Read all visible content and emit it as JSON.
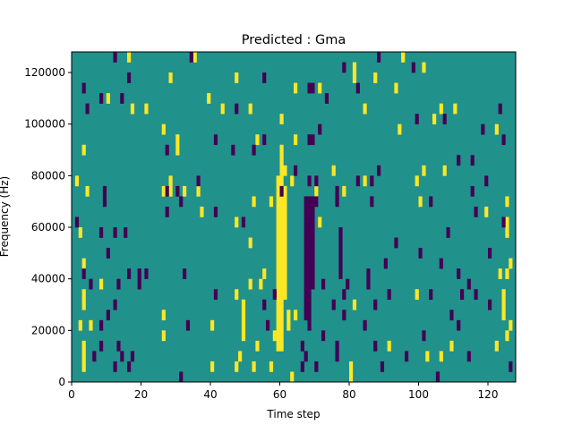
{
  "chart_data": {
    "type": "heatmap",
    "title": "Predicted : Gma",
    "xlabel": "Time step",
    "ylabel": "Frequency (Hz)",
    "xlim": [
      0,
      128
    ],
    "ylim": [
      0,
      128000
    ],
    "n_cols": 128,
    "n_rows": 32,
    "row_bin_hz": 4000,
    "x_ticks": [
      0,
      20,
      40,
      60,
      80,
      100,
      120
    ],
    "y_ticks": [
      0,
      20000,
      40000,
      60000,
      80000,
      100000,
      120000
    ],
    "colors": {
      "background": "#21918c",
      "high": "#fde725",
      "low": "#440154"
    },
    "yellow_runs": [
      [
        59,
        3,
        19
      ],
      [
        60,
        3,
        22
      ],
      [
        61,
        8,
        17
      ],
      [
        62,
        5,
        6
      ]
    ],
    "purple_runs": [
      [
        67,
        6,
        17
      ],
      [
        68,
        5,
        17
      ],
      [
        69,
        9,
        17
      ]
    ],
    "yellow": [
      [
        16,
        31
      ],
      [
        35,
        31
      ],
      [
        95,
        31
      ],
      [
        81,
        30
      ],
      [
        101,
        30
      ],
      [
        28,
        29
      ],
      [
        47,
        29
      ],
      [
        81,
        29
      ],
      [
        87,
        29
      ],
      [
        64,
        28
      ],
      [
        71,
        28
      ],
      [
        93,
        28
      ],
      [
        10,
        27
      ],
      [
        39,
        27
      ],
      [
        17,
        26
      ],
      [
        21,
        26
      ],
      [
        43,
        26
      ],
      [
        51,
        26
      ],
      [
        84,
        26
      ],
      [
        106,
        26
      ],
      [
        110,
        26
      ],
      [
        60,
        25
      ],
      [
        104,
        25
      ],
      [
        26,
        24
      ],
      [
        94,
        24
      ],
      [
        122,
        24
      ],
      [
        30,
        23
      ],
      [
        53,
        23
      ],
      [
        64,
        23
      ],
      [
        3,
        22
      ],
      [
        30,
        22
      ],
      [
        61,
        20
      ],
      [
        75,
        20
      ],
      [
        101,
        20
      ],
      [
        107,
        20
      ],
      [
        1,
        19
      ],
      [
        28,
        19
      ],
      [
        63,
        19
      ],
      [
        84,
        19
      ],
      [
        99,
        19
      ],
      [
        4,
        18
      ],
      [
        26,
        18
      ],
      [
        28,
        18
      ],
      [
        32,
        18
      ],
      [
        36,
        18
      ],
      [
        61,
        18
      ],
      [
        70,
        18
      ],
      [
        78,
        18
      ],
      [
        52,
        17
      ],
      [
        57,
        17
      ],
      [
        100,
        17
      ],
      [
        125,
        17
      ],
      [
        37,
        16
      ],
      [
        119,
        16
      ],
      [
        47,
        15
      ],
      [
        71,
        15
      ],
      [
        125,
        15
      ],
      [
        2,
        14
      ],
      [
        125,
        14
      ],
      [
        51,
        13
      ],
      [
        3,
        11
      ],
      [
        126,
        11
      ],
      [
        55,
        10
      ],
      [
        123,
        10
      ],
      [
        125,
        10
      ],
      [
        8,
        9
      ],
      [
        51,
        9
      ],
      [
        54,
        9
      ],
      [
        3,
        8
      ],
      [
        47,
        8
      ],
      [
        99,
        8
      ],
      [
        124,
        8
      ],
      [
        3,
        7
      ],
      [
        49,
        7
      ],
      [
        81,
        7
      ],
      [
        124,
        7
      ],
      [
        26,
        6
      ],
      [
        49,
        6
      ],
      [
        64,
        6
      ],
      [
        124,
        6
      ],
      [
        2,
        5
      ],
      [
        5,
        5
      ],
      [
        40,
        5
      ],
      [
        49,
        5
      ],
      [
        126,
        5
      ],
      [
        26,
        4
      ],
      [
        49,
        4
      ],
      [
        58,
        4
      ],
      [
        125,
        4
      ],
      [
        3,
        3
      ],
      [
        53,
        3
      ],
      [
        91,
        3
      ],
      [
        109,
        3
      ],
      [
        122,
        3
      ],
      [
        3,
        2
      ],
      [
        48,
        2
      ],
      [
        102,
        2
      ],
      [
        106,
        2
      ],
      [
        3,
        1
      ],
      [
        40,
        1
      ],
      [
        47,
        1
      ],
      [
        52,
        1
      ],
      [
        57,
        1
      ],
      [
        80,
        1
      ],
      [
        80,
        0
      ],
      [
        63,
        0
      ]
    ],
    "purple": [
      [
        12,
        31
      ],
      [
        34,
        31
      ],
      [
        88,
        31
      ],
      [
        78,
        30
      ],
      [
        98,
        30
      ],
      [
        16,
        29
      ],
      [
        55,
        29
      ],
      [
        3,
        28
      ],
      [
        68,
        28
      ],
      [
        69,
        28
      ],
      [
        82,
        28
      ],
      [
        8,
        27
      ],
      [
        14,
        27
      ],
      [
        73,
        27
      ],
      [
        4,
        26
      ],
      [
        47,
        26
      ],
      [
        123,
        26
      ],
      [
        99,
        25
      ],
      [
        107,
        25
      ],
      [
        71,
        24
      ],
      [
        118,
        24
      ],
      [
        41,
        23
      ],
      [
        55,
        23
      ],
      [
        68,
        23
      ],
      [
        69,
        23
      ],
      [
        124,
        23
      ],
      [
        27,
        22
      ],
      [
        46,
        22
      ],
      [
        52,
        22
      ],
      [
        111,
        21
      ],
      [
        115,
        21
      ],
      [
        64,
        20
      ],
      [
        88,
        20
      ],
      [
        36,
        19
      ],
      [
        68,
        19
      ],
      [
        70,
        19
      ],
      [
        82,
        19
      ],
      [
        86,
        19
      ],
      [
        119,
        19
      ],
      [
        9,
        18
      ],
      [
        27,
        18
      ],
      [
        30,
        18
      ],
      [
        60,
        18
      ],
      [
        76,
        18
      ],
      [
        115,
        18
      ],
      [
        9,
        17
      ],
      [
        31,
        17
      ],
      [
        70,
        17
      ],
      [
        76,
        17
      ],
      [
        86,
        17
      ],
      [
        103,
        17
      ],
      [
        27,
        16
      ],
      [
        41,
        16
      ],
      [
        116,
        16
      ],
      [
        1,
        15
      ],
      [
        49,
        15
      ],
      [
        124,
        15
      ],
      [
        8,
        14
      ],
      [
        12,
        14
      ],
      [
        15,
        14
      ],
      [
        77,
        14
      ],
      [
        108,
        14
      ],
      [
        77,
        13
      ],
      [
        93,
        13
      ],
      [
        10,
        12
      ],
      [
        77,
        12
      ],
      [
        100,
        12
      ],
      [
        120,
        12
      ],
      [
        77,
        11
      ],
      [
        90,
        11
      ],
      [
        106,
        11
      ],
      [
        3,
        10
      ],
      [
        16,
        10
      ],
      [
        19,
        10
      ],
      [
        21,
        10
      ],
      [
        32,
        10
      ],
      [
        77,
        10
      ],
      [
        85,
        10
      ],
      [
        111,
        10
      ],
      [
        5,
        9
      ],
      [
        13,
        9
      ],
      [
        19,
        9
      ],
      [
        72,
        9
      ],
      [
        79,
        9
      ],
      [
        85,
        9
      ],
      [
        114,
        9
      ],
      [
        41,
        8
      ],
      [
        58,
        8
      ],
      [
        78,
        8
      ],
      [
        91,
        8
      ],
      [
        103,
        8
      ],
      [
        112,
        8
      ],
      [
        116,
        8
      ],
      [
        12,
        7
      ],
      [
        55,
        7
      ],
      [
        75,
        7
      ],
      [
        87,
        7
      ],
      [
        120,
        7
      ],
      [
        10,
        6
      ],
      [
        78,
        6
      ],
      [
        109,
        6
      ],
      [
        8,
        5
      ],
      [
        33,
        5
      ],
      [
        56,
        5
      ],
      [
        84,
        5
      ],
      [
        111,
        5
      ],
      [
        72,
        4
      ],
      [
        101,
        4
      ],
      [
        8,
        3
      ],
      [
        13,
        3
      ],
      [
        66,
        3
      ],
      [
        76,
        3
      ],
      [
        87,
        3
      ],
      [
        6,
        2
      ],
      [
        14,
        2
      ],
      [
        17,
        2
      ],
      [
        67,
        2
      ],
      [
        76,
        2
      ],
      [
        96,
        2
      ],
      [
        114,
        2
      ],
      [
        12,
        1
      ],
      [
        16,
        1
      ],
      [
        66,
        1
      ],
      [
        70,
        1
      ],
      [
        89,
        1
      ],
      [
        126,
        1
      ],
      [
        31,
        0
      ],
      [
        105,
        0
      ]
    ]
  }
}
